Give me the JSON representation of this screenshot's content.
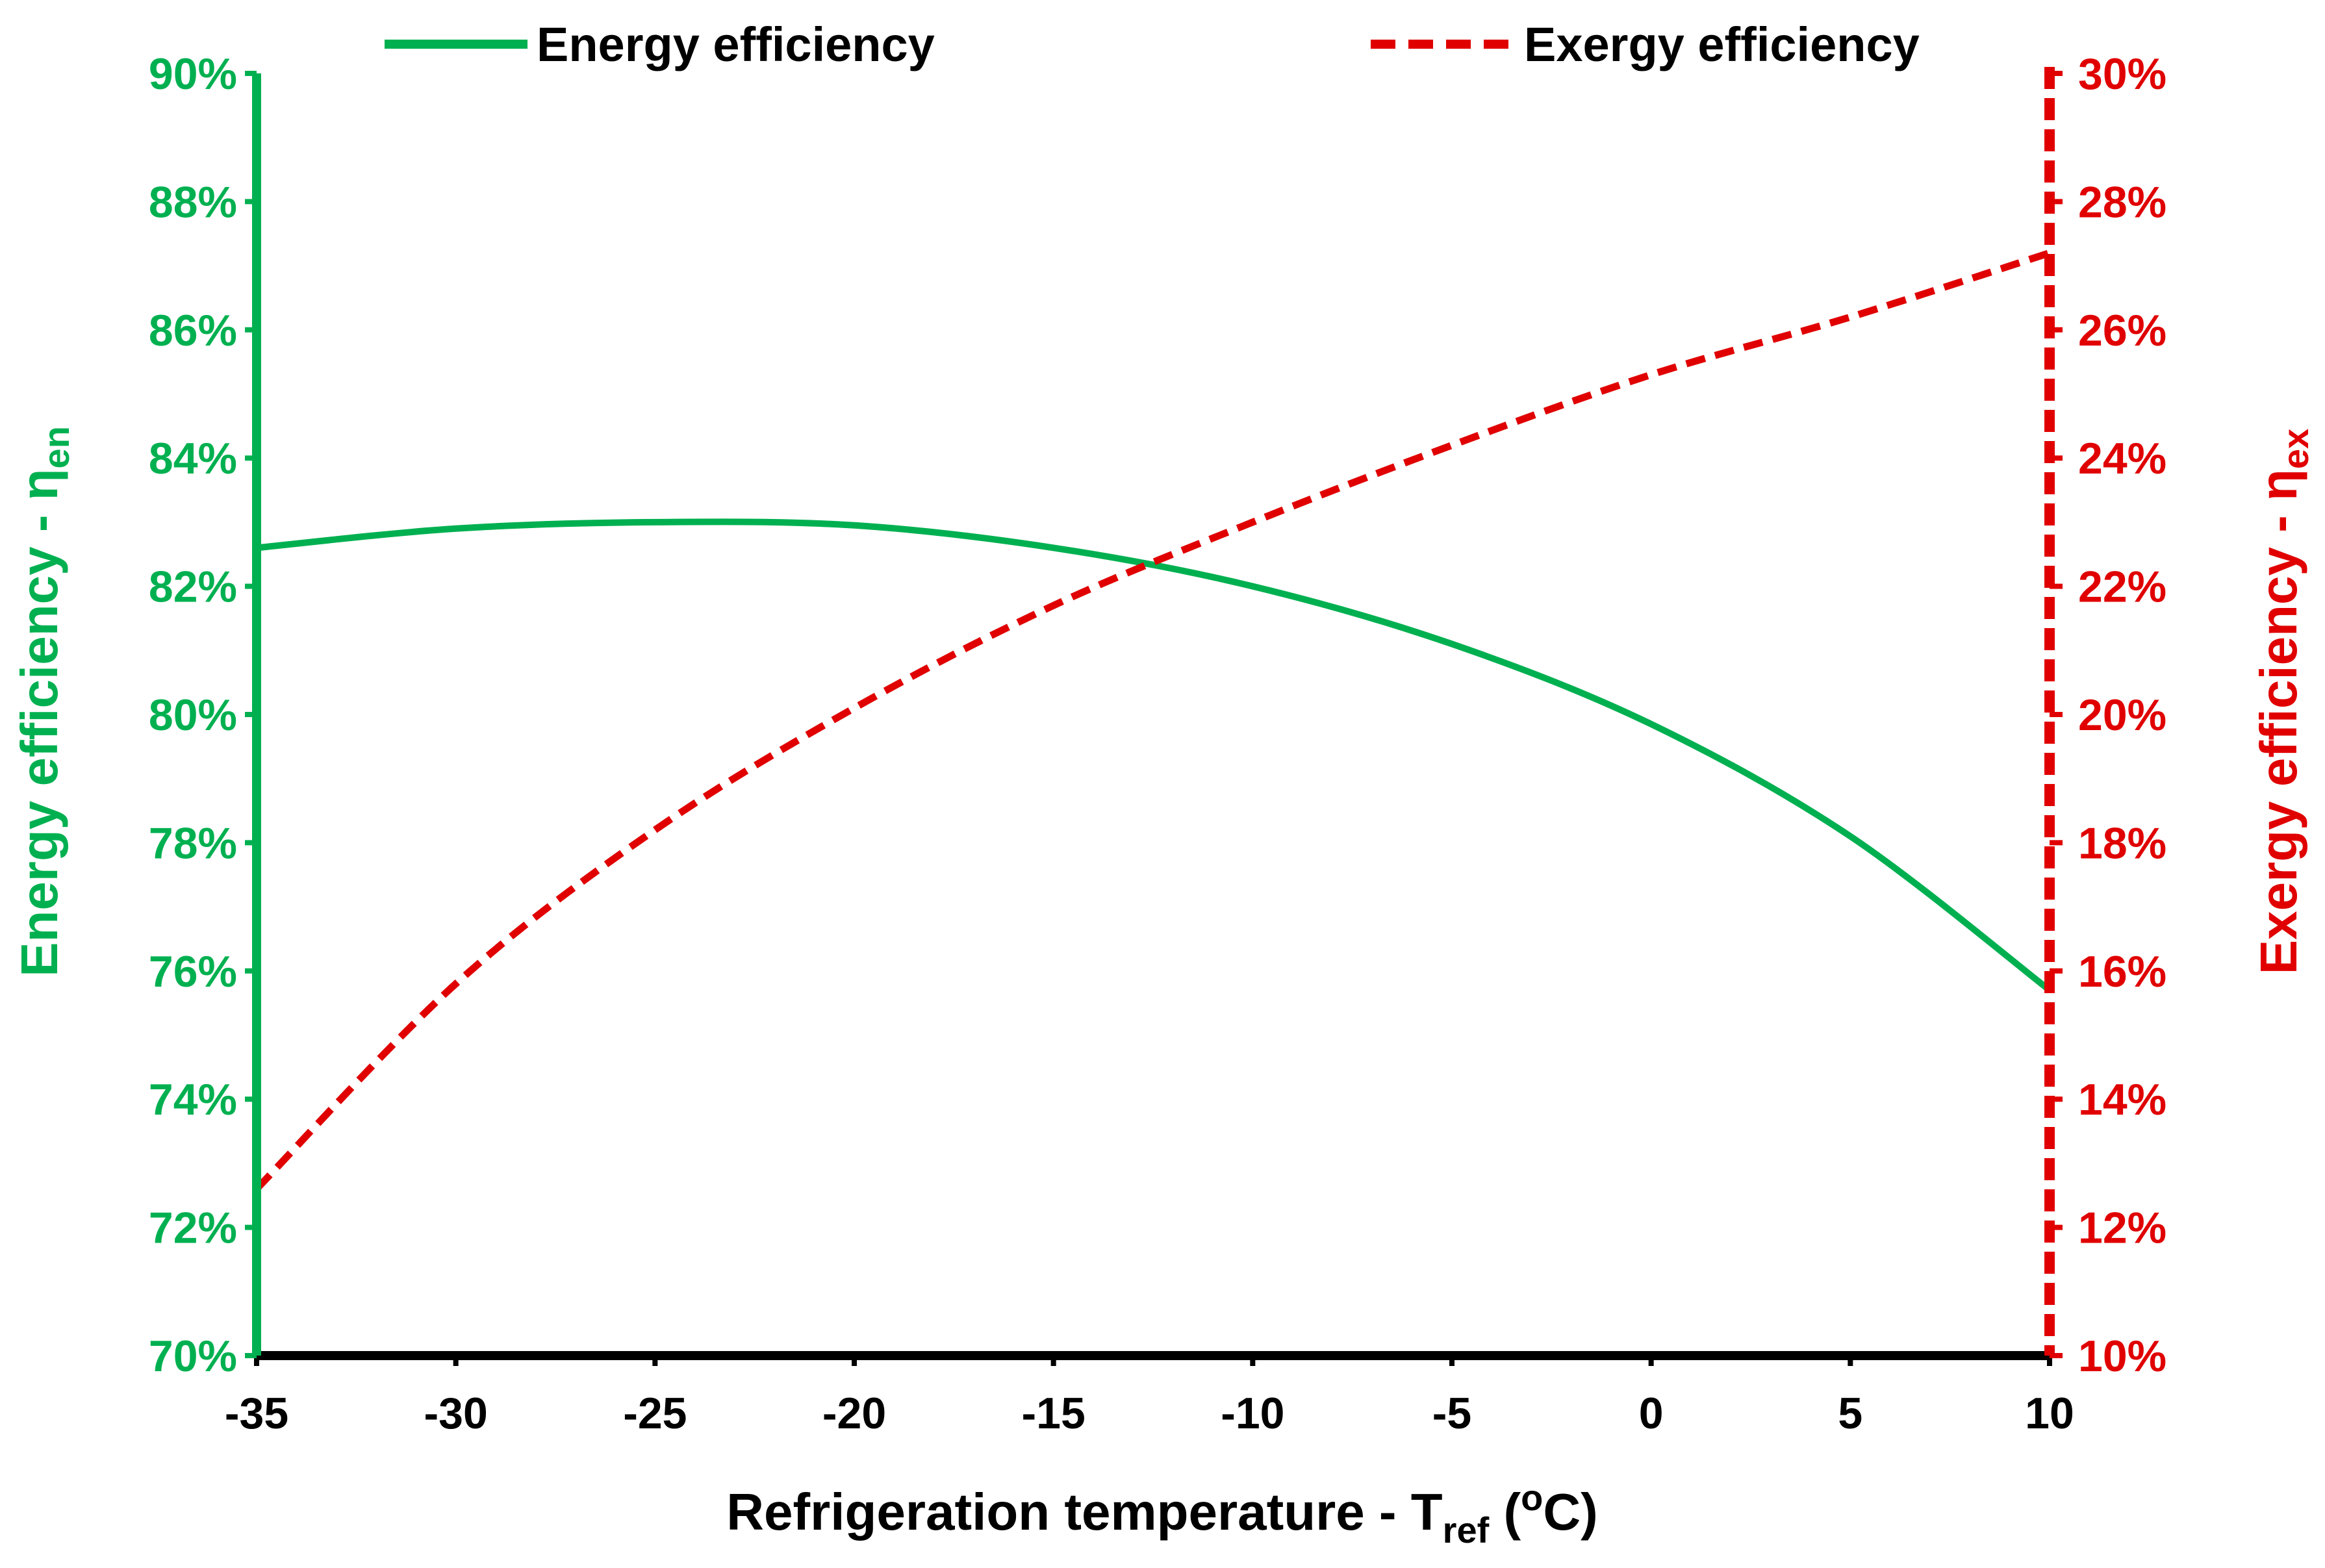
{
  "chart_data": {
    "type": "line",
    "title": "",
    "colors": {
      "energy": "#00B050",
      "exergy": "#E00000",
      "axis": "#000000"
    },
    "x": [
      -35,
      -30,
      -25,
      -20,
      -15,
      -10,
      -5,
      0,
      5,
      10
    ],
    "xlim": [
      -35,
      10
    ],
    "xticks": [
      "-35",
      "-30",
      "-25",
      "-20",
      "-15",
      "-10",
      "-5",
      "0",
      "5",
      "10"
    ],
    "xlabel": {
      "main": "Refrigeration temperature - T",
      "sub": "ref",
      "paren_open": " (",
      "sup": "o",
      "unit": "C)"
    },
    "y_left": {
      "label_main": "Energy efficiency - η",
      "label_sub": "en",
      "lim": [
        70,
        90
      ],
      "ticks": [
        "70%",
        "72%",
        "74%",
        "76%",
        "78%",
        "80%",
        "82%",
        "84%",
        "86%",
        "88%",
        "90%"
      ]
    },
    "y_right": {
      "label_main": "Exergy efficiency - η",
      "label_sub": "ex",
      "lim": [
        10,
        30
      ],
      "ticks": [
        "10%",
        "12%",
        "14%",
        "16%",
        "18%",
        "20%",
        "22%",
        "24%",
        "26%",
        "28%",
        "30%"
      ]
    },
    "legend": {
      "position": "top",
      "entries": [
        "Energy efficiency",
        "Exergy efficiency"
      ]
    },
    "series": [
      {
        "name": "Energy efficiency",
        "axis": "left",
        "style": "solid",
        "values": [
          82.6,
          82.9,
          83.0,
          82.95,
          82.6,
          82.0,
          81.1,
          79.85,
          78.1,
          75.7
        ]
      },
      {
        "name": "Exergy efficiency",
        "axis": "right",
        "style": "dashed",
        "values": [
          12.6,
          15.8,
          18.2,
          20.1,
          21.7,
          23.0,
          24.2,
          25.3,
          26.2,
          27.2
        ]
      }
    ]
  }
}
